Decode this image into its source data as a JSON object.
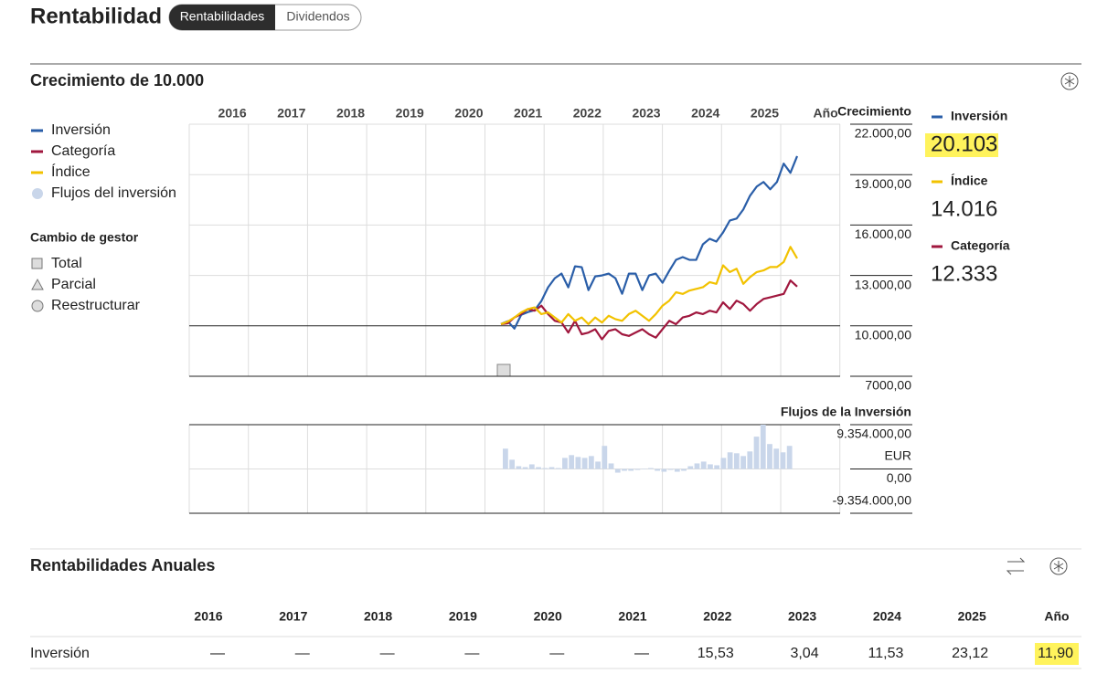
{
  "header": {
    "title": "Rentabilidad",
    "tabs": [
      "Rentabilidades",
      "Dividendos"
    ]
  },
  "growth": {
    "title": "Crecimiento de 10.000",
    "flows_legend": "Flujos del inversión",
    "manager": {
      "title": "Cambio de gestor",
      "items": [
        "Total",
        "Parcial",
        "Reestructurar"
      ]
    },
    "chart": {
      "type": "line",
      "columns": [
        "2016",
        "2017",
        "2018",
        "2019",
        "2020",
        "2021",
        "2022",
        "2023",
        "2024",
        "2025",
        "Año"
      ],
      "y_label": "Crecimiento",
      "ylim": [
        7000,
        22000
      ],
      "yticks": [
        {
          "value": 22000,
          "label": "22.000,00"
        },
        {
          "value": 19000,
          "label": "19.000,00"
        },
        {
          "value": 16000,
          "label": "16.000,00"
        },
        {
          "value": 13000,
          "label": "13.000,00"
        },
        {
          "value": 10000,
          "label": "10.000,00"
        },
        {
          "value": 7000,
          "label": "7000,00"
        }
      ],
      "series": [
        {
          "name": "Inversión",
          "color": "#2a5ea8",
          "values": [
            10109,
            10273,
            9836,
            10655,
            10818,
            10927,
            11473,
            12291,
            12836,
            13109,
            12291,
            13545,
            13491,
            12127,
            12945,
            13000,
            13109,
            12836,
            11909,
            13109,
            13109,
            12127,
            13000,
            13109,
            12564,
            13273,
            13927,
            14091,
            13927,
            13927,
            14855,
            15182,
            15018,
            15564,
            16273,
            16382,
            16927,
            17745,
            18291,
            18564,
            18127,
            18564,
            19655,
            19109,
            20103
          ]
        },
        {
          "name": "Categoría",
          "color": "#a0173e",
          "values": [
            10100,
            10150,
            10500,
            10700,
            11000,
            10900,
            11200,
            10700,
            10300,
            10200,
            9600,
            10300,
            9500,
            9600,
            9800,
            9200,
            9700,
            9800,
            9500,
            9400,
            9600,
            9800,
            9500,
            9300,
            9800,
            10300,
            10100,
            10500,
            10600,
            10800,
            10700,
            10900,
            10800,
            11400,
            11000,
            11500,
            11300,
            10900,
            11300,
            11600,
            11700,
            11800,
            11900,
            12700,
            12333
          ]
        },
        {
          "name": "Índice",
          "color": "#f2c200",
          "values": [
            10100,
            10250,
            10500,
            10800,
            11000,
            11100,
            10700,
            10800,
            10500,
            10200,
            10700,
            10300,
            10500,
            10100,
            10500,
            10200,
            10600,
            10400,
            10300,
            10700,
            10900,
            10600,
            10300,
            10700,
            11200,
            11500,
            12000,
            11900,
            12100,
            12200,
            12300,
            12600,
            12500,
            13600,
            13200,
            13400,
            12500,
            12900,
            13200,
            13300,
            13500,
            13500,
            13800,
            14700,
            14016
          ]
        }
      ]
    },
    "summary": [
      {
        "name": "Inversión",
        "value": "20.103",
        "color": "#2a5ea8"
      },
      {
        "name": "Índice",
        "value": "14.016",
        "color": "#f2c200"
      },
      {
        "name": "Categoría",
        "value": "12.333",
        "color": "#a0173e"
      }
    ]
  },
  "flows": {
    "type": "bar",
    "title": "Flujos de la Inversión",
    "unit": "EUR",
    "color": "#c9d6ea",
    "ylim": [
      -9354000,
      9354000
    ],
    "yticks": [
      {
        "value": 9354000,
        "label": "9.354.000,00"
      },
      {
        "value": 0,
        "label": "0,00"
      },
      {
        "value": -9354000,
        "label": "-9.354.000,00"
      }
    ],
    "values": [
      4290000,
      1950000,
      585000,
      390000,
      975000,
      390000,
      195000,
      390000,
      195000,
      2340000,
      2925000,
      2535000,
      2340000,
      2730000,
      1560000,
      4875000,
      1170000,
      -780000,
      -390000,
      -390000,
      -195000,
      0,
      195000,
      -390000,
      -585000,
      -195000,
      -585000,
      -390000,
      585000,
      1170000,
      1560000,
      975000,
      780000,
      2340000,
      3510000,
      3315000,
      2730000,
      3705000,
      6825000,
      9354000,
      5265000,
      4290000,
      3510000,
      4875000
    ]
  },
  "annual": {
    "title": "Rentabilidades Anuales",
    "columns": [
      "2016",
      "2017",
      "2018",
      "2019",
      "2020",
      "2021",
      "2022",
      "2023",
      "2024",
      "2025",
      "Año"
    ],
    "rows": [
      {
        "name": "Inversión",
        "cells": [
          "—",
          "—",
          "—",
          "—",
          "—",
          "—",
          "15,53",
          "3,04",
          "11,53",
          "23,12",
          "11,90"
        ]
      }
    ]
  }
}
